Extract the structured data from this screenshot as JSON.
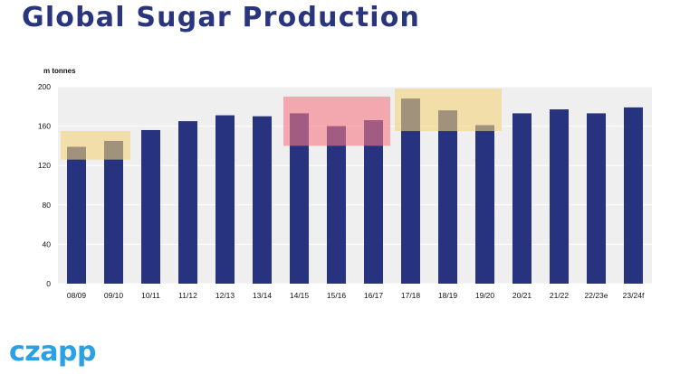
{
  "title": "Global Sugar Production",
  "brand": "czapp",
  "colors": {
    "title": "#2a3580",
    "bar": "#28337f",
    "plot_bg": "#efefef",
    "gridline": "#ffffff",
    "highlight_yellow": "rgba(241, 210, 120, 0.6)",
    "highlight_red": "rgba(243, 120, 130, 0.6)",
    "logo": "#2aa0e6"
  },
  "chart_data": {
    "type": "bar",
    "title": "Global Sugar Production",
    "unit_label": "m tonnes",
    "xlabel": "",
    "ylabel": "",
    "ylim": [
      0,
      200
    ],
    "yticks": [
      0,
      40,
      80,
      120,
      160,
      200
    ],
    "grid": true,
    "categories": [
      "08/09",
      "09/10",
      "10/11",
      "11/12",
      "12/13",
      "13/14",
      "14/15",
      "15/16",
      "16/17",
      "17/18",
      "18/19",
      "19/20",
      "20/21",
      "21/22",
      "22/23e",
      "23/24f"
    ],
    "values": [
      139,
      145,
      156,
      165,
      171,
      170,
      173,
      160,
      166,
      188,
      176,
      161,
      173,
      177,
      173,
      179
    ],
    "highlights": [
      {
        "from": "08/09",
        "to": "09/10",
        "y_range": [
          126,
          155
        ],
        "color": "yellow"
      },
      {
        "from": "14/15",
        "to": "16/17",
        "y_range": [
          140,
          190
        ],
        "color": "red"
      },
      {
        "from": "17/18",
        "to": "19/20",
        "y_range": [
          155,
          198
        ],
        "color": "yellow"
      }
    ]
  }
}
